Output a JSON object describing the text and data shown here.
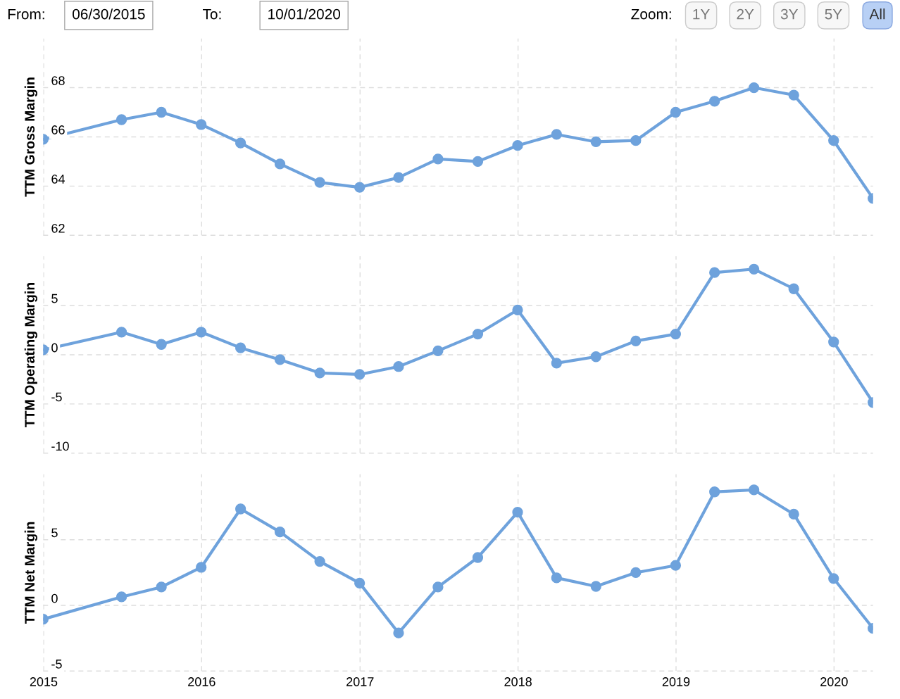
{
  "chart_data": [
    {
      "type": "line",
      "ylabel": "TTM Gross Margin",
      "annotations": [
        "From:",
        "06/30/2015",
        "To:",
        "10/01/2020",
        "Zoom:",
        "1Y",
        "2Y",
        "3Y",
        "5Y",
        "All"
      ],
      "x": [
        "2014-12-31",
        "2015-06-30",
        "2015-09-30",
        "2015-12-31",
        "2016-03-31",
        "2016-06-30",
        "2016-09-30",
        "2016-12-31",
        "2017-03-31",
        "2017-06-30",
        "2017-09-30",
        "2017-12-31",
        "2018-03-31",
        "2018-06-30",
        "2018-09-30",
        "2018-12-31",
        "2019-03-31",
        "2019-06-30",
        "2019-09-30",
        "2019-12-31",
        "2020-03-31"
      ],
      "series": [
        {
          "color": "#6ea2dc",
          "values": [
            65.9,
            66.7,
            67.0,
            66.5,
            65.75,
            64.9,
            64.15,
            63.95,
            64.35,
            65.1,
            65.0,
            65.65,
            66.1,
            65.8,
            65.85,
            67.0,
            67.45,
            68.0,
            67.7,
            65.85,
            63.5
          ]
        }
      ],
      "xlim": [
        "2014-12-31",
        "2020-03-31"
      ],
      "xticks": [
        {
          "value": "2015",
          "label": null
        },
        {
          "value": "2016",
          "label": null
        },
        {
          "value": "2017",
          "label": null
        },
        {
          "value": "2018",
          "label": null
        },
        {
          "value": "2019",
          "label": null
        },
        {
          "value": "2020",
          "label": null
        }
      ],
      "ylim": [
        62,
        70
      ],
      "yticks": [
        62,
        64,
        66,
        68
      ],
      "tick_labels": "y",
      "grid": true,
      "marker": "circle",
      "line_style": "solid",
      "legend": false
    },
    {
      "type": "line",
      "ylabel": "TTM Operating Margin",
      "x": [
        "2014-12-31",
        "2015-06-30",
        "2015-09-30",
        "2015-12-31",
        "2016-03-31",
        "2016-06-30",
        "2016-09-30",
        "2016-12-31",
        "2017-03-31",
        "2017-06-30",
        "2017-09-30",
        "2017-12-31",
        "2018-03-31",
        "2018-06-30",
        "2018-09-30",
        "2018-12-31",
        "2019-03-31",
        "2019-06-30",
        "2019-09-30",
        "2019-12-31",
        "2020-03-31"
      ],
      "series": [
        {
          "color": "#6ea2dc",
          "values": [
            0.5,
            2.3,
            1.05,
            2.3,
            0.7,
            -0.5,
            -1.85,
            -2.0,
            -1.2,
            0.4,
            2.1,
            4.55,
            -0.85,
            -0.2,
            1.4,
            2.1,
            8.35,
            8.7,
            6.7,
            1.3,
            -4.85
          ]
        }
      ],
      "xlim": [
        "2014-12-31",
        "2020-03-31"
      ],
      "xticks": [
        {
          "value": "2015",
          "label": null
        },
        {
          "value": "2016",
          "label": null
        },
        {
          "value": "2017",
          "label": null
        },
        {
          "value": "2018",
          "label": null
        },
        {
          "value": "2019",
          "label": null
        },
        {
          "value": "2020",
          "label": null
        }
      ],
      "ylim": [
        -10,
        10
      ],
      "yticks": [
        -10,
        -5,
        0,
        5
      ],
      "tick_labels": "y",
      "grid": true,
      "marker": "circle",
      "line_style": "solid",
      "legend": false
    },
    {
      "type": "line",
      "ylabel": "TTM Net Margin",
      "x": [
        "2014-12-31",
        "2015-06-30",
        "2015-09-30",
        "2015-12-31",
        "2016-03-31",
        "2016-06-30",
        "2016-09-30",
        "2016-12-31",
        "2017-03-31",
        "2017-06-30",
        "2017-09-30",
        "2017-12-31",
        "2018-03-31",
        "2018-06-30",
        "2018-09-30",
        "2018-12-31",
        "2019-03-31",
        "2019-06-30",
        "2019-09-30",
        "2019-12-31",
        "2020-03-31"
      ],
      "series": [
        {
          "color": "#6ea2dc",
          "values": [
            -1.05,
            0.65,
            1.4,
            2.9,
            7.35,
            5.6,
            3.35,
            1.7,
            -2.1,
            1.4,
            3.65,
            7.1,
            2.1,
            1.45,
            2.5,
            3.05,
            8.65,
            8.8,
            6.95,
            2.05,
            -1.75
          ]
        }
      ],
      "xlim": [
        "2014-12-31",
        "2020-03-31"
      ],
      "xticks": [
        "2015",
        "2016",
        "2017",
        "2018",
        "2019",
        "2020"
      ],
      "ylim": [
        -5,
        10
      ],
      "yticks": [
        -5,
        0,
        5
      ],
      "grid": true,
      "marker": "circle",
      "line_style": "solid",
      "legend": false
    }
  ]
}
